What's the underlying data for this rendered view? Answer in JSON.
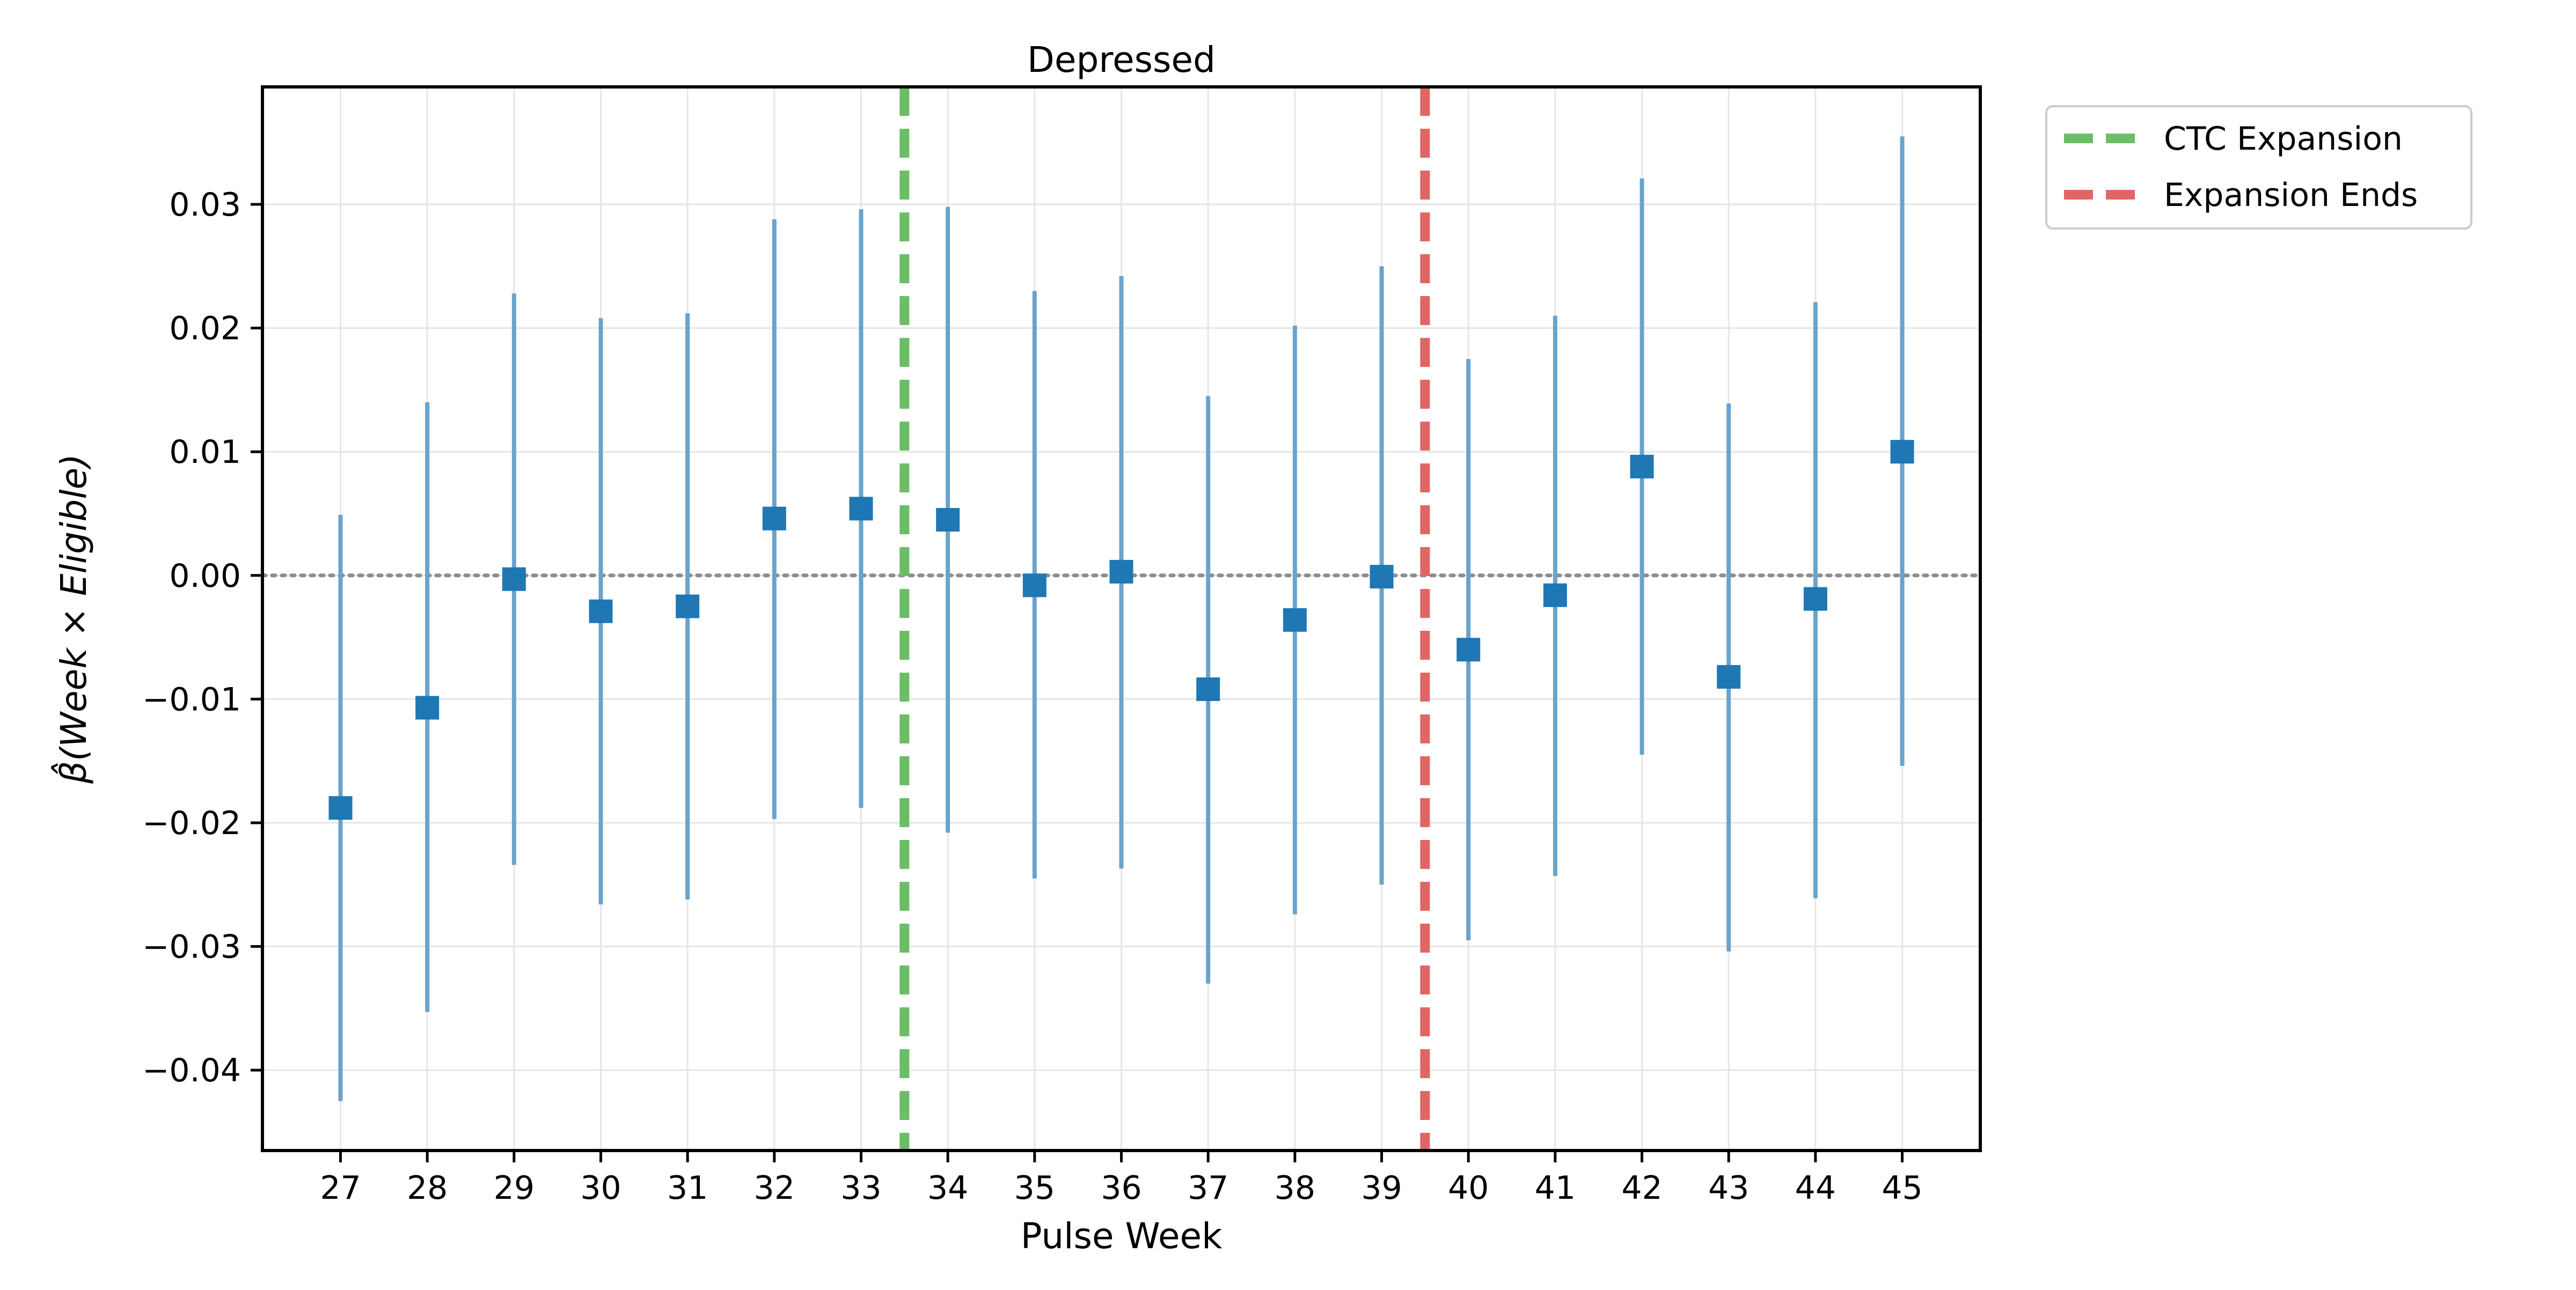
{
  "chart_data": {
    "type": "scatter",
    "title": "Depressed",
    "xlabel": "Pulse Week",
    "ylabel": "β̂(Week × Eligible)",
    "x": [
      27,
      28,
      29,
      30,
      31,
      32,
      33,
      34,
      35,
      36,
      37,
      38,
      39,
      40,
      41,
      42,
      43,
      44,
      45
    ],
    "x_tick_labels": [
      "27",
      "28",
      "29",
      "30",
      "31",
      "32",
      "33",
      "34",
      "35",
      "36",
      "37",
      "38",
      "39",
      "40",
      "41",
      "42",
      "43",
      "44",
      "45"
    ],
    "xlim": [
      26.1,
      45.9
    ],
    "ylim": [
      -0.0465,
      0.0395
    ],
    "y_ticks": [
      0.03,
      0.02,
      0.01,
      0.0,
      -0.01,
      -0.02,
      -0.03,
      -0.04
    ],
    "y_tick_labels": [
      "0.03",
      "0.02",
      "0.01",
      "0.00",
      "−0.01",
      "−0.02",
      "−0.03",
      "−0.04"
    ],
    "grid": true,
    "series": [
      {
        "marker": "square",
        "color": "#1f77b4",
        "errorbar_color": "#6aa3cb",
        "values": [
          -0.0188,
          -0.0107,
          -0.0003,
          -0.0029,
          -0.0025,
          0.0046,
          0.0054,
          0.0045,
          -0.0008,
          0.0003,
          -0.0092,
          -0.0036,
          -0.0001,
          -0.006,
          -0.0016,
          0.0088,
          -0.0082,
          -0.0019,
          0.01
        ],
        "lower": [
          -0.0425,
          -0.0353,
          -0.0234,
          -0.0266,
          -0.0262,
          -0.0197,
          -0.0188,
          -0.0208,
          -0.0245,
          -0.0237,
          -0.033,
          -0.0274,
          -0.025,
          -0.0295,
          -0.0243,
          -0.0145,
          -0.0304,
          -0.0261,
          -0.0154
        ],
        "upper": [
          0.0049,
          0.014,
          0.0228,
          0.0208,
          0.0212,
          0.0288,
          0.0296,
          0.0298,
          0.023,
          0.0242,
          0.0145,
          0.0202,
          0.025,
          0.0175,
          0.021,
          0.0321,
          0.0139,
          0.0221,
          0.0355
        ]
      }
    ],
    "reference_lines": [
      {
        "orientation": "horizontal",
        "y": 0.0,
        "style": "dotted",
        "color": "#8c8c8c"
      },
      {
        "orientation": "vertical",
        "x": 33.5,
        "style": "dashed",
        "color": "#6bbd66",
        "label": "CTC Expansion"
      },
      {
        "orientation": "vertical",
        "x": 39.5,
        "style": "dashed",
        "color": "#e06666",
        "label": "Expansion Ends"
      }
    ],
    "legend": {
      "placement": "outside-top-right",
      "entries": [
        {
          "label": "CTC Expansion",
          "color": "#6bbd66",
          "style": "dashed"
        },
        {
          "label": "Expansion Ends",
          "color": "#e06666",
          "style": "dashed"
        }
      ]
    }
  }
}
